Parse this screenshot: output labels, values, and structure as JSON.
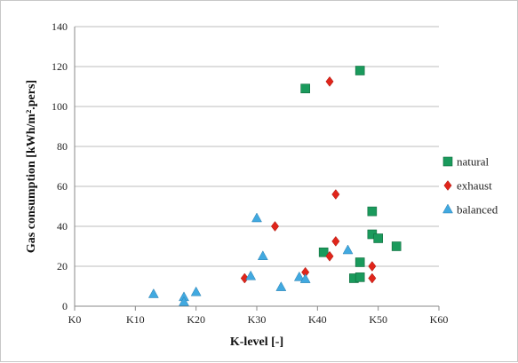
{
  "chart_data": {
    "type": "scatter",
    "title": "",
    "xlabel": "K-level [-]",
    "ylabel": "Gas consumption  [kWh/m².pers]",
    "xlim": [
      0,
      60
    ],
    "ylim": [
      0,
      140
    ],
    "x_ticks": [
      {
        "value": 0,
        "label": "K0"
      },
      {
        "value": 10,
        "label": "K10"
      },
      {
        "value": 20,
        "label": "K20"
      },
      {
        "value": 30,
        "label": "K30"
      },
      {
        "value": 40,
        "label": "K40"
      },
      {
        "value": 50,
        "label": "K50"
      },
      {
        "value": 60,
        "label": "K60"
      }
    ],
    "y_ticks": [
      {
        "value": 0,
        "label": "0"
      },
      {
        "value": 20,
        "label": "20"
      },
      {
        "value": 40,
        "label": "40"
      },
      {
        "value": 60,
        "label": "60"
      },
      {
        "value": 80,
        "label": "80"
      },
      {
        "value": 100,
        "label": "100"
      },
      {
        "value": 120,
        "label": "120"
      },
      {
        "value": 140,
        "label": "140"
      }
    ],
    "grid": "horizontal",
    "legend_position": "right",
    "series": [
      {
        "name": "natural",
        "marker": "square",
        "color": "#1a9a5c",
        "points": [
          [
            38,
            109
          ],
          [
            47,
            118
          ],
          [
            41,
            27
          ],
          [
            46,
            14
          ],
          [
            47,
            14.5
          ],
          [
            47,
            22
          ],
          [
            49,
            47.5
          ],
          [
            49,
            36
          ],
          [
            50,
            34
          ],
          [
            53,
            30
          ]
        ]
      },
      {
        "name": "exhaust",
        "marker": "diamond",
        "color": "#e0251b",
        "points": [
          [
            42,
            112.5
          ],
          [
            43,
            56
          ],
          [
            33,
            40
          ],
          [
            43,
            32.5
          ],
          [
            42,
            25
          ],
          [
            38,
            17
          ],
          [
            28,
            14
          ],
          [
            49,
            20
          ],
          [
            49,
            14
          ]
        ]
      },
      {
        "name": "balanced",
        "marker": "triangle",
        "color": "#41a9e0",
        "points": [
          [
            30,
            44
          ],
          [
            31,
            25
          ],
          [
            29,
            15
          ],
          [
            34,
            9.5
          ],
          [
            37,
            14.5
          ],
          [
            38,
            13.5
          ],
          [
            45,
            28
          ],
          [
            13,
            6
          ],
          [
            18,
            4.5
          ],
          [
            18,
            2
          ],
          [
            20,
            7
          ]
        ]
      }
    ]
  }
}
